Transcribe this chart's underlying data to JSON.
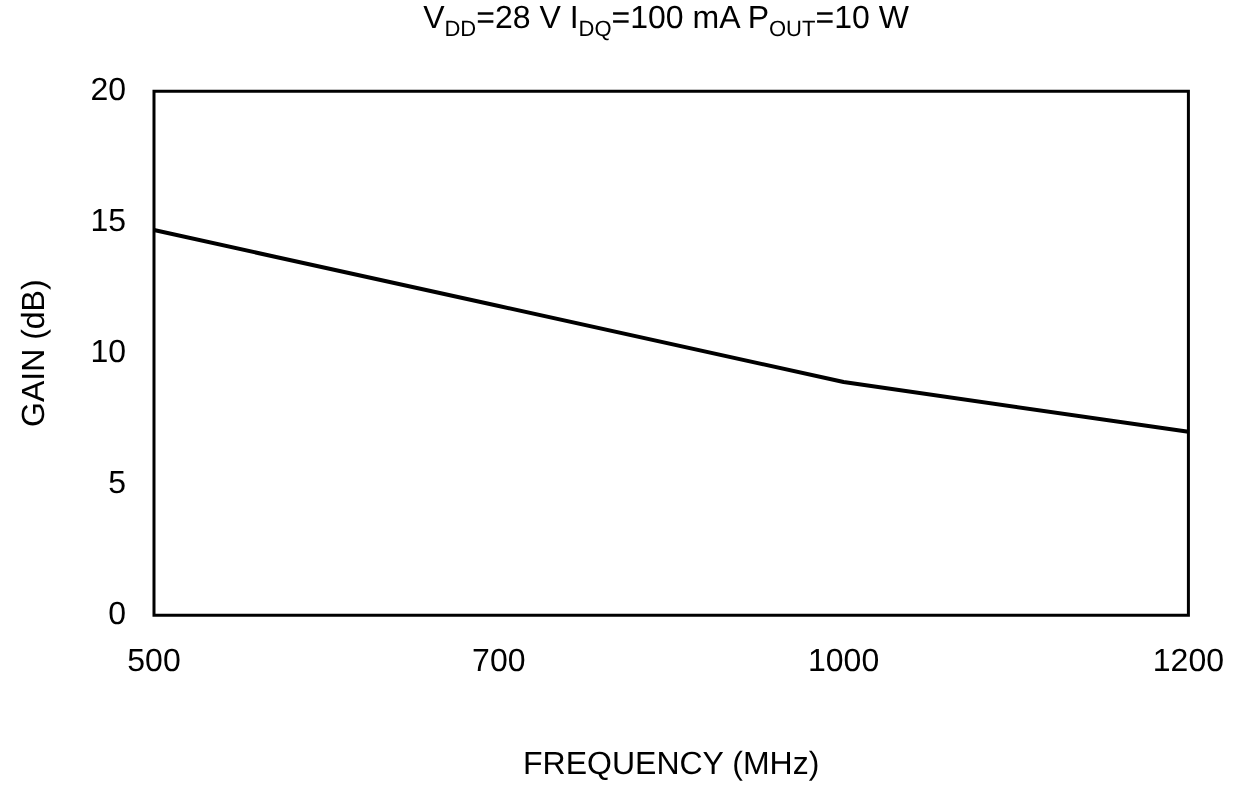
{
  "chart_data": {
    "type": "line",
    "title": "V$_{DD}$=28 V I$_{DQ}$=100 mA P$_{OUT}$=10 W",
    "xlabel": "FREQUENCY (MHz)",
    "ylabel": "GAIN (dB)",
    "categories": [
      "500",
      "700",
      "1000",
      "1200"
    ],
    "series": [
      {
        "color": "#000000",
        "values": [
          14.7,
          11.8,
          8.9,
          7.0
        ]
      }
    ],
    "ylim": [
      0,
      20
    ],
    "yticks": [
      0,
      5,
      10,
      15,
      20
    ],
    "grid": false,
    "legend": false,
    "marker": "none",
    "line_style": "solid"
  }
}
